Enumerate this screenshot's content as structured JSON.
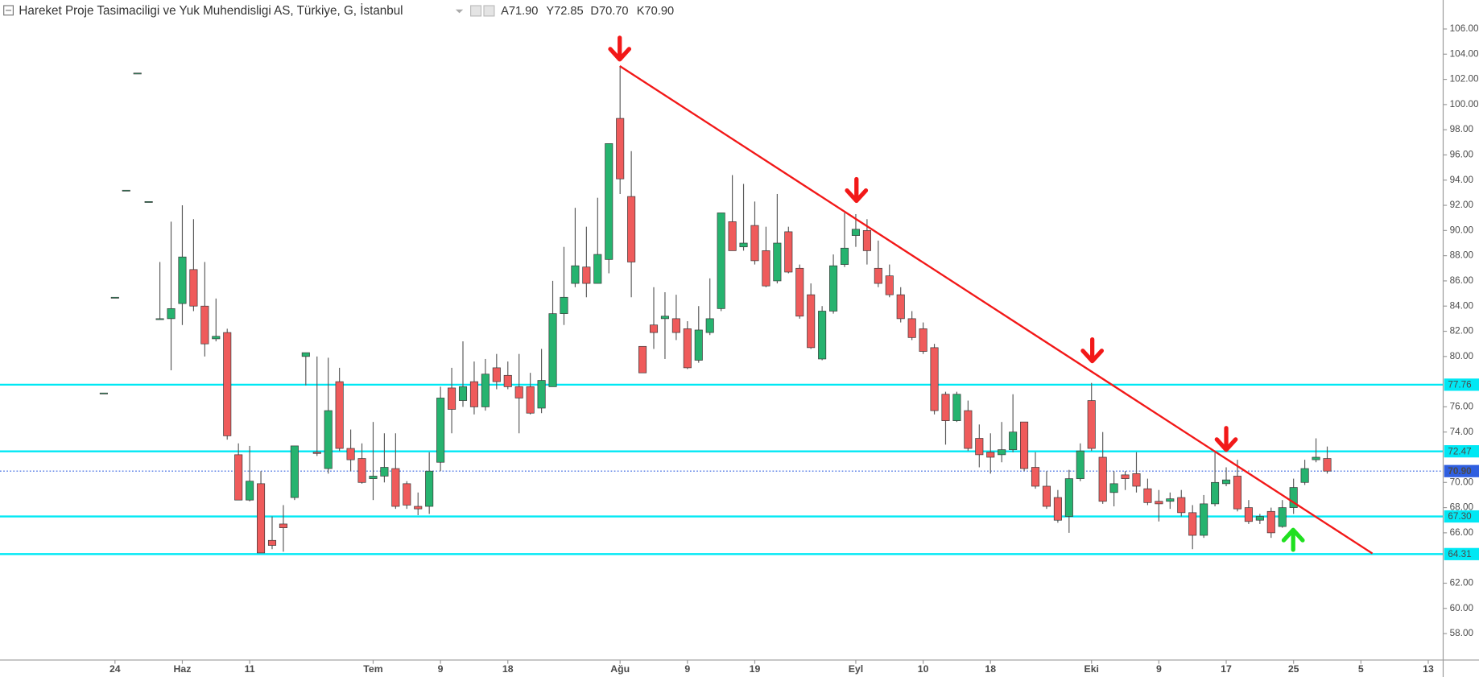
{
  "chart_data": {
    "type": "candlestick",
    "title": "Hareket Proje Tasimaciligi ve Yuk Muhendisligi AS, Türkiye, G, İstanbul",
    "legend_values": [
      "A71.90",
      "Y72.85",
      "D70.70",
      "K70.90"
    ],
    "up_color": "#26b36f",
    "down_color": "#ef5b5b",
    "wick_color": "#5a5a5a",
    "categories": [
      null,
      "24",
      null,
      null,
      null,
      null,
      null,
      "Haz",
      null,
      null,
      null,
      null,
      null,
      "11",
      null,
      null,
      null,
      null,
      null,
      null,
      null,
      null,
      null,
      null,
      "Tem",
      null,
      null,
      null,
      null,
      null,
      "9",
      null,
      null,
      null,
      null,
      null,
      "18",
      null,
      null,
      null,
      null,
      null,
      null,
      null,
      null,
      null,
      "Ağu",
      null,
      null,
      null,
      null,
      null,
      "9",
      null,
      null,
      null,
      null,
      null,
      "19",
      null,
      null,
      null,
      null,
      null,
      null,
      null,
      null,
      "Eyl",
      null,
      null,
      null,
      null,
      null,
      "10",
      null,
      null,
      null,
      null,
      null,
      "18",
      null,
      null,
      null,
      null,
      null,
      null,
      null,
      null,
      "Eki",
      null,
      null,
      null,
      null,
      null,
      "9",
      null,
      null,
      null,
      null,
      null,
      "17",
      null,
      null,
      null,
      null,
      null,
      "25",
      null,
      null,
      null,
      null,
      null,
      "5",
      null,
      null,
      null,
      null,
      null,
      "13"
    ],
    "open": [
      77.1,
      84.7,
      93.2,
      102.5,
      92.3,
      83.0,
      83.0,
      84.2,
      86.9,
      84.0,
      81.4,
      81.9,
      72.2,
      68.6,
      69.9,
      65.4,
      66.7,
      68.8,
      80.0,
      72.4,
      71.1,
      78.0,
      72.7,
      71.9,
      70.3,
      70.5,
      71.1,
      69.9,
      68.1,
      68.1,
      71.6,
      77.5,
      76.5,
      78.0,
      76.0,
      79.1,
      78.5,
      77.6,
      77.6,
      75.9,
      77.6,
      83.4,
      85.8,
      87.1,
      85.8,
      87.7,
      98.9,
      92.7,
      80.8,
      82.5,
      83.0,
      83.0,
      82.2,
      79.7,
      81.9,
      83.8,
      90.7,
      88.7,
      90.4,
      88.4,
      86.0,
      89.9,
      87.0,
      84.9,
      79.8,
      83.6,
      87.3,
      89.6,
      90.0,
      87.0,
      86.4,
      84.9,
      83.0,
      82.2,
      80.7,
      77.0,
      74.9,
      75.7,
      73.5,
      72.4,
      72.2,
      72.6,
      74.8,
      71.2,
      69.7,
      68.8,
      67.3,
      70.3,
      76.5,
      72.0,
      69.2,
      70.6,
      70.7,
      69.5,
      68.5,
      68.5,
      68.8,
      67.6,
      65.8,
      68.3,
      69.9,
      70.5,
      68.0,
      67.0,
      67.7,
      66.5,
      68.0,
      70.0,
      71.8,
      71.9,
      null,
      null,
      null,
      null,
      null,
      null,
      null,
      null,
      null
    ],
    "high": [
      77.1,
      84.7,
      93.2,
      102.5,
      92.3,
      87.5,
      90.7,
      92.0,
      90.9,
      87.5,
      84.6,
      82.2,
      73.1,
      72.9,
      70.9,
      67.3,
      68.2,
      72.9,
      80.3,
      80.0,
      79.9,
      79.1,
      74.2,
      73.1,
      74.8,
      73.9,
      73.9,
      70.1,
      69.2,
      72.4,
      77.6,
      79.1,
      81.2,
      79.6,
      79.8,
      80.2,
      79.6,
      80.2,
      78.7,
      80.6,
      86.0,
      88.7,
      91.8,
      90.3,
      92.6,
      96.9,
      103.0,
      96.3,
      80.8,
      85.5,
      85.1,
      84.9,
      82.8,
      84.0,
      86.2,
      91.4,
      94.4,
      93.7,
      92.3,
      90.3,
      92.9,
      90.3,
      87.3,
      85.8,
      84.0,
      88.1,
      91.4,
      91.3,
      90.9,
      89.2,
      87.3,
      85.5,
      83.6,
      82.7,
      81.0,
      77.2,
      77.2,
      76.5,
      74.6,
      73.9,
      74.8,
      77.0,
      74.8,
      72.4,
      70.9,
      69.4,
      71.0,
      73.1,
      77.9,
      74.0,
      70.9,
      70.9,
      72.4,
      70.3,
      69.4,
      69.2,
      69.4,
      68.2,
      69.0,
      72.4,
      71.2,
      71.8,
      68.6,
      67.5,
      68.0,
      68.6,
      70.3,
      71.8,
      73.5,
      72.85,
      null,
      null,
      null,
      null,
      null,
      null,
      null,
      null,
      null
    ],
    "low": [
      77.1,
      84.7,
      93.2,
      102.5,
      92.3,
      83.0,
      78.9,
      82.5,
      83.6,
      80.0,
      81.2,
      73.4,
      68.6,
      68.5,
      64.4,
      64.7,
      64.5,
      68.6,
      77.7,
      72.1,
      70.7,
      72.5,
      70.9,
      69.9,
      68.6,
      70.0,
      67.9,
      67.9,
      67.4,
      67.5,
      70.9,
      73.9,
      76.0,
      75.4,
      75.7,
      77.4,
      77.4,
      73.9,
      75.4,
      75.5,
      77.6,
      82.5,
      85.5,
      84.7,
      85.8,
      86.6,
      92.9,
      84.7,
      78.7,
      80.6,
      79.8,
      81.3,
      79.0,
      79.5,
      81.7,
      83.6,
      88.4,
      88.4,
      87.3,
      85.5,
      85.8,
      86.6,
      83.0,
      80.6,
      79.7,
      83.4,
      87.1,
      88.7,
      87.3,
      85.5,
      84.7,
      82.7,
      81.3,
      80.2,
      75.4,
      73.0,
      74.8,
      72.5,
      71.2,
      70.7,
      71.6,
      72.4,
      70.9,
      69.5,
      67.9,
      66.8,
      66.0,
      70.1,
      72.5,
      68.3,
      68.1,
      69.4,
      69.2,
      68.2,
      66.9,
      67.9,
      67.3,
      64.7,
      65.6,
      68.1,
      69.7,
      67.7,
      66.7,
      66.7,
      65.6,
      66.4,
      67.5,
      69.8,
      71.6,
      70.7,
      null,
      null,
      null,
      null,
      null,
      null,
      null,
      null,
      null
    ],
    "close": [
      77.1,
      84.7,
      93.2,
      102.5,
      92.3,
      83.0,
      83.8,
      87.9,
      84.0,
      81.0,
      81.6,
      73.7,
      68.6,
      70.1,
      64.4,
      65.0,
      66.4,
      72.9,
      80.3,
      72.3,
      75.7,
      72.7,
      71.8,
      70.0,
      70.5,
      71.2,
      68.1,
      68.2,
      67.9,
      70.9,
      76.7,
      75.8,
      77.6,
      76.0,
      78.6,
      78.0,
      77.6,
      76.7,
      75.5,
      78.1,
      83.4,
      84.7,
      87.2,
      85.8,
      88.1,
      96.9,
      94.1,
      87.5,
      78.7,
      81.9,
      83.2,
      81.9,
      79.1,
      82.1,
      83.0,
      91.4,
      88.4,
      89.0,
      87.6,
      85.6,
      89.0,
      86.7,
      83.2,
      80.7,
      83.6,
      87.2,
      88.6,
      90.1,
      88.4,
      85.8,
      84.9,
      83.0,
      81.5,
      80.4,
      75.7,
      74.9,
      77.0,
      72.7,
      72.2,
      72.0,
      72.6,
      74.0,
      71.1,
      69.7,
      68.1,
      67.0,
      70.3,
      72.5,
      72.7,
      68.5,
      69.9,
      70.3,
      69.7,
      68.4,
      68.3,
      68.7,
      67.6,
      65.8,
      68.3,
      70.0,
      70.2,
      67.9,
      66.9,
      67.3,
      66.0,
      68.0,
      69.6,
      71.1,
      72.0,
      70.9,
      null,
      null,
      null,
      null,
      null,
      null,
      null,
      null,
      null
    ],
    "ylim": [
      55.9,
      108.3
    ],
    "yticks": [
      {
        "value": 58,
        "label": "58.00"
      },
      {
        "value": 60,
        "label": "60.00"
      },
      {
        "value": 62,
        "label": "62.00"
      },
      {
        "value": 66,
        "label": "66.00"
      },
      {
        "value": 68,
        "label": "68.00"
      },
      {
        "value": 70,
        "label": "70.00"
      },
      {
        "value": 74,
        "label": "74.00"
      },
      {
        "value": 76,
        "label": "76.00"
      },
      {
        "value": 80,
        "label": "80.00"
      },
      {
        "value": 82,
        "label": "82.00"
      },
      {
        "value": 84,
        "label": "84.00"
      },
      {
        "value": 86,
        "label": "86.00"
      },
      {
        "value": 88,
        "label": "88.00"
      },
      {
        "value": 90,
        "label": "90.00"
      },
      {
        "value": 92,
        "label": "92.00"
      },
      {
        "value": 94,
        "label": "94.00"
      },
      {
        "value": 96,
        "label": "96.00"
      },
      {
        "value": 98,
        "label": "98.00"
      },
      {
        "value": 100,
        "label": "100.00"
      },
      {
        "value": 102,
        "label": "102.00"
      },
      {
        "value": 104,
        "label": "104.00"
      },
      {
        "value": 106,
        "label": "106.00"
      }
    ],
    "levels": {
      "color": "#00e8f4",
      "values": [
        77.76,
        72.47,
        67.3,
        64.31
      ],
      "value_labels": [
        "77.76",
        "72.47",
        "67.30",
        "64.31"
      ]
    },
    "last_price": {
      "value": 70.9,
      "label": "70.90",
      "color": "#2f5fe0"
    }
  }
}
